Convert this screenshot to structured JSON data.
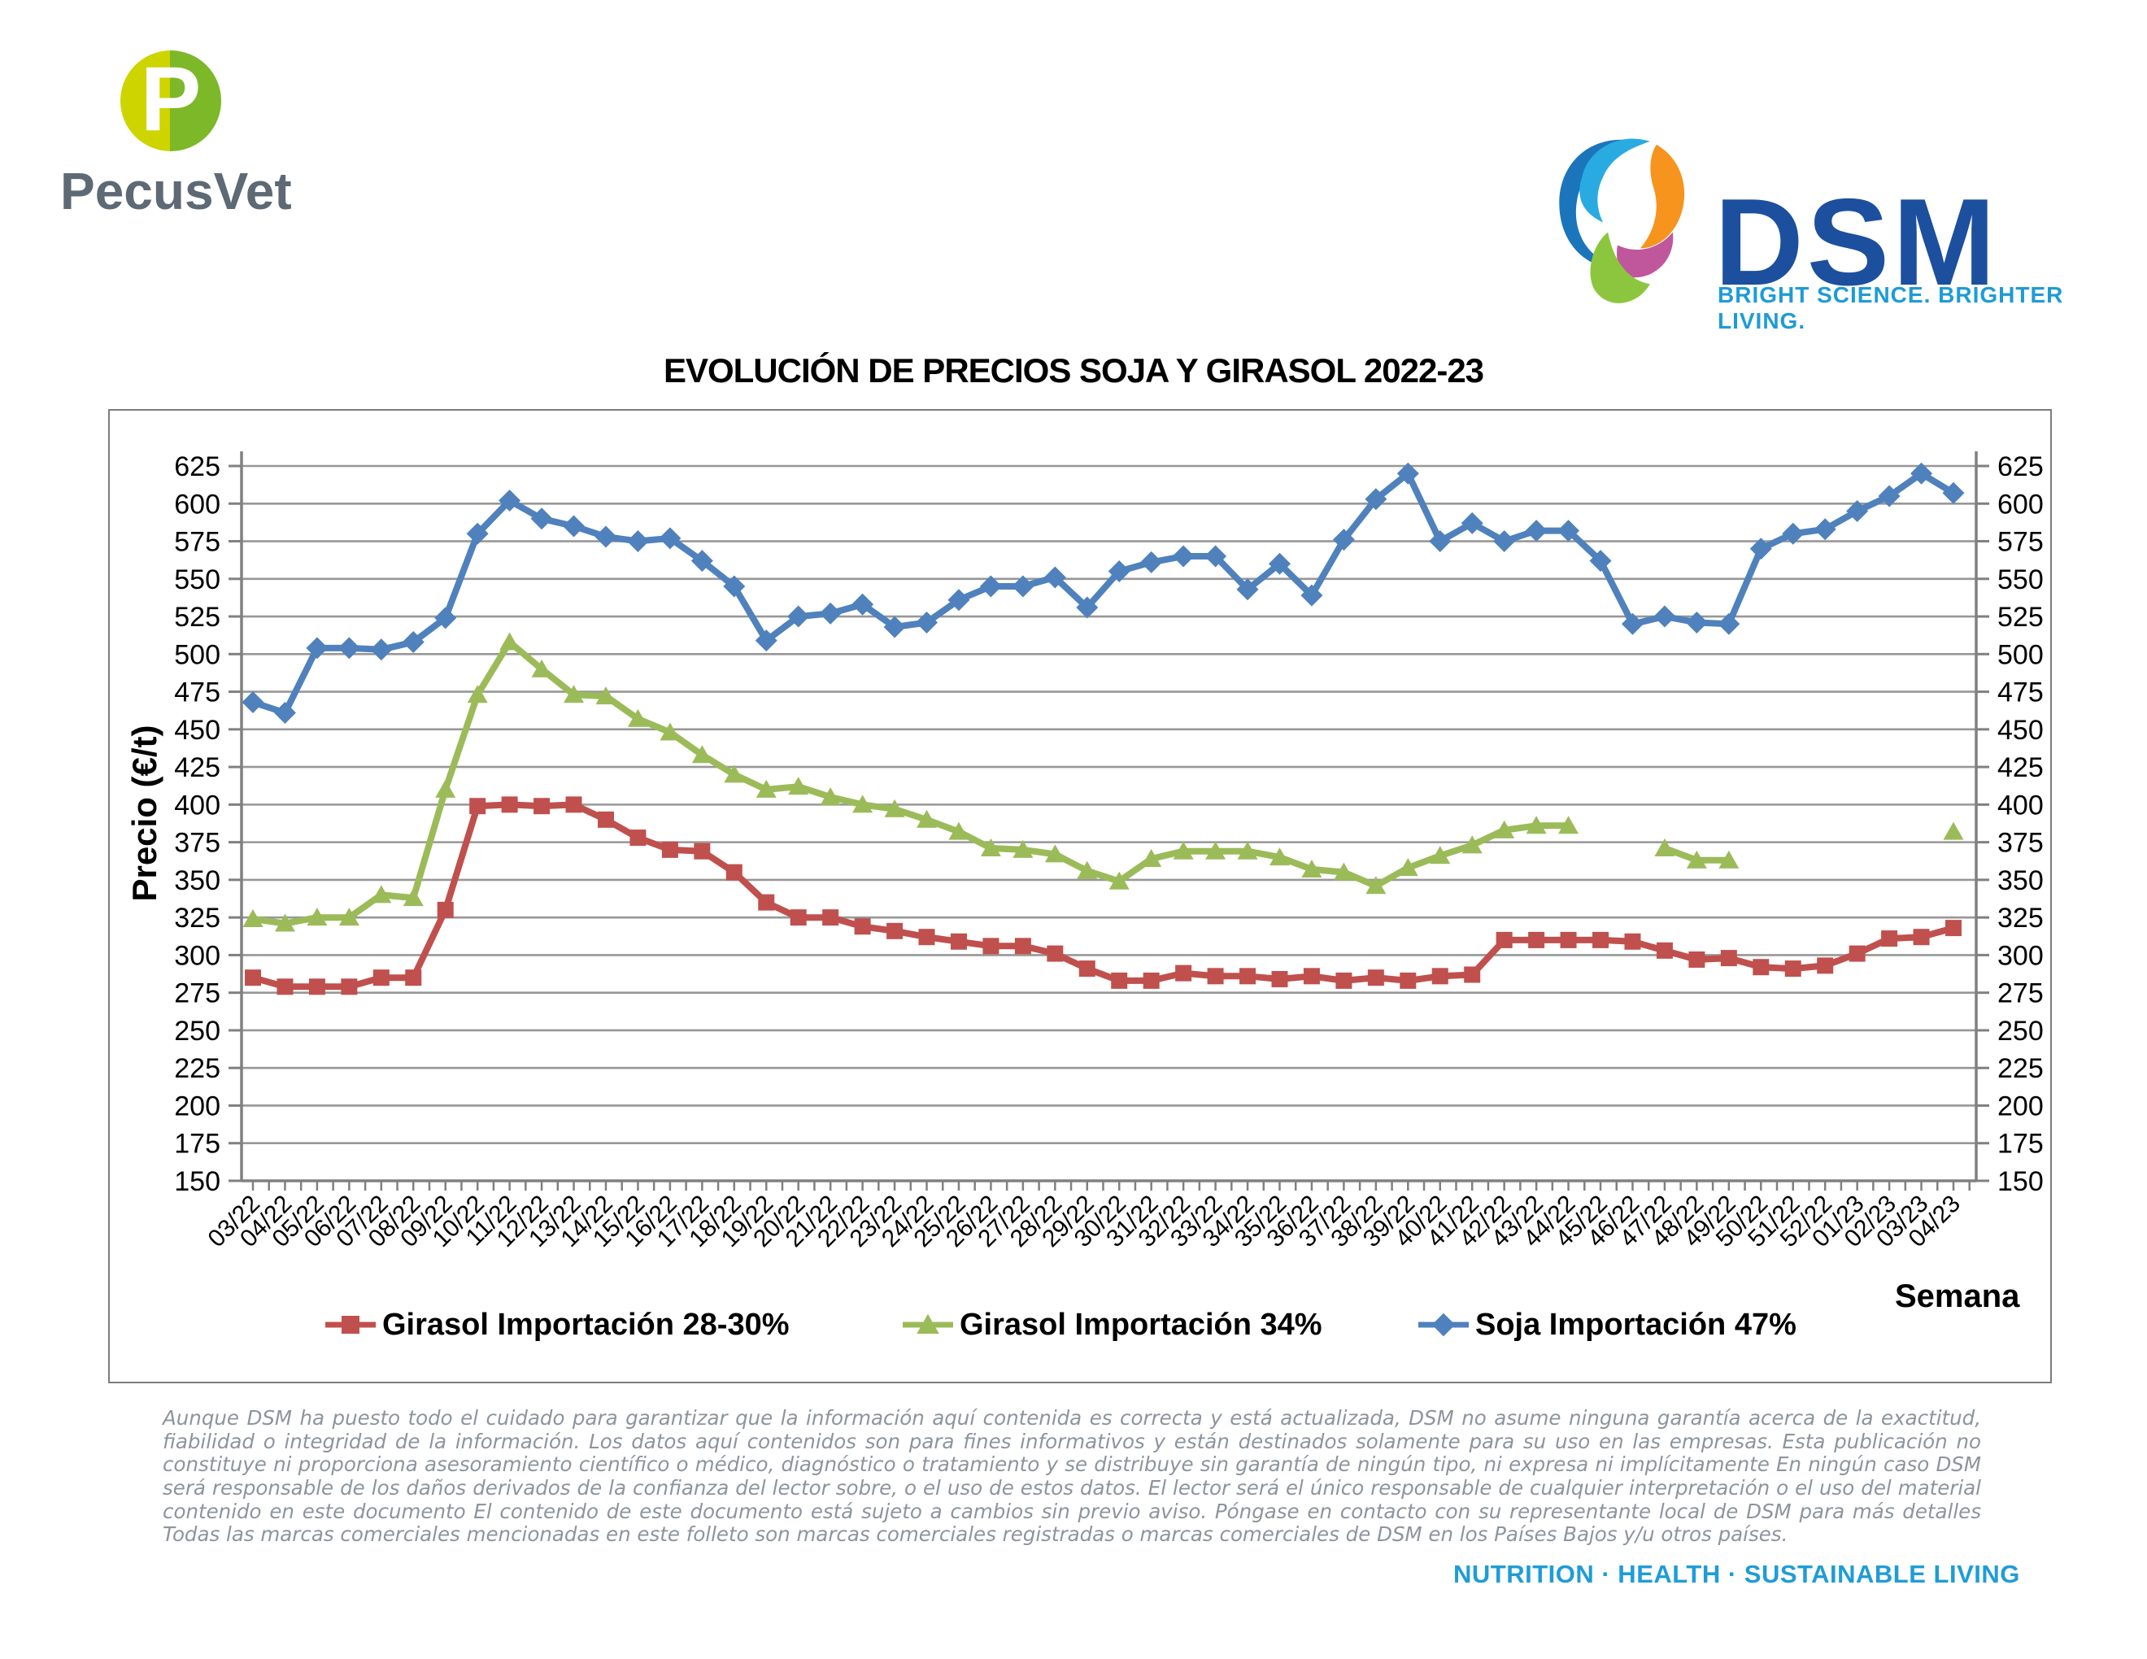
{
  "header": {
    "pecusvet": {
      "monogram": "P",
      "wordmark": "PecusVet"
    },
    "dsm": {
      "name": "DSM",
      "tagline": "BRIGHT SCIENCE. BRIGHTER LIVING."
    }
  },
  "chart_data": {
    "type": "line",
    "title": "EVOLUCIÓN DE PRECIOS SOJA Y GIRASOL 2022-23",
    "xlabel": "Semana",
    "ylabel": "Precio (€/t)",
    "ylim": [
      150,
      625
    ],
    "ytick_step": 25,
    "grid": true,
    "legend_position": "bottom",
    "colors": {
      "grid": "#979797",
      "axis": "#808080",
      "tick_label": "#000000"
    },
    "categories": [
      "03/22",
      "04/22",
      "05/22",
      "06/22",
      "07/22",
      "08/22",
      "09/22",
      "10/22",
      "11/22",
      "12/22",
      "13/22",
      "14/22",
      "15/22",
      "16/22",
      "17/22",
      "18/22",
      "19/22",
      "20/22",
      "21/22",
      "22/22",
      "23/22",
      "24/22",
      "25/22",
      "26/22",
      "27/22",
      "28/22",
      "29/22",
      "30/22",
      "31/22",
      "32/22",
      "33/22",
      "34/22",
      "35/22",
      "36/22",
      "37/22",
      "38/22",
      "39/22",
      "40/22",
      "41/22",
      "42/22",
      "43/22",
      "44/22",
      "45/22",
      "46/22",
      "47/22",
      "48/22",
      "49/22",
      "50/22",
      "51/22",
      "52/22",
      "01/23",
      "02/23",
      "03/23",
      "04/23"
    ],
    "series": [
      {
        "name": "Girasol Importación 28-30%",
        "color": "#C0504D",
        "marker": "square",
        "values": [
          285,
          279,
          279,
          279,
          285,
          285,
          330,
          399,
          400,
          399,
          400,
          390,
          378,
          370,
          369,
          355,
          335,
          325,
          325,
          319,
          316,
          312,
          309,
          306,
          306,
          301,
          291,
          283,
          283,
          288,
          286,
          286,
          284,
          286,
          283,
          285,
          283,
          286,
          287,
          310,
          310,
          310,
          310,
          309,
          303,
          297,
          298,
          292,
          291,
          293,
          301,
          311,
          312,
          318
        ]
      },
      {
        "name": "Girasol Importación 34%",
        "color": "#9BBB59",
        "marker": "triangle",
        "values": [
          324,
          321,
          325,
          325,
          340,
          338,
          410,
          473,
          508,
          490,
          473,
          472,
          457,
          448,
          433,
          420,
          410,
          412,
          405,
          400,
          397,
          390,
          382,
          371,
          370,
          367,
          356,
          349,
          364,
          369,
          369,
          369,
          365,
          357,
          355,
          346,
          358,
          366,
          373,
          383,
          386,
          386,
          null,
          null,
          371,
          363,
          363,
          null,
          null,
          null,
          null,
          null,
          null,
          382
        ]
      },
      {
        "name": "Soja Importación 47%",
        "color": "#4F81BD",
        "marker": "diamond",
        "values": [
          468,
          461,
          504,
          504,
          503,
          508,
          524,
          580,
          602,
          590,
          585,
          578,
          575,
          577,
          562,
          545,
          509,
          525,
          527,
          533,
          518,
          521,
          536,
          545,
          545,
          551,
          531,
          555,
          561,
          565,
          565,
          543,
          560,
          539,
          576,
          603,
          620,
          575,
          587,
          575,
          582,
          582,
          562,
          520,
          525,
          521,
          520,
          570,
          580,
          583,
          595,
          605,
          620,
          607
        ]
      }
    ]
  },
  "footer": {
    "disclaimer": "Aunque DSM ha puesto todo el cuidado para garantizar que la información aquí contenida es correcta y está actualizada, DSM no asume ninguna garantía acerca de la exactitud, fiabilidad o integridad de la información. Los datos aquí contenidos son para fines informativos y están destinados solamente para su uso en las empresas. Esta publicación no constituye ni proporciona asesoramiento científico o médico, diagnóstico o tratamiento y se distribuye sin garantía de ningún tipo, ni expresa ni implícitamente En ningún caso DSM será responsable de los daños derivados de la confianza del lector sobre, o el uso de estos datos. El lector será el único responsable de cualquier interpretación o el uso del material contenido en este documento El contenido de este documento está sujeto a cambios sin previo aviso. Póngase en contacto con su representante local de DSM para más detalles Todas las marcas comerciales mencionadas en este folleto son marcas comerciales registradas o marcas comerciales de DSM en los Países Bajos y/u otros países.",
    "tagline": "NUTRITION · HEALTH · SUSTAINABLE LIVING"
  }
}
